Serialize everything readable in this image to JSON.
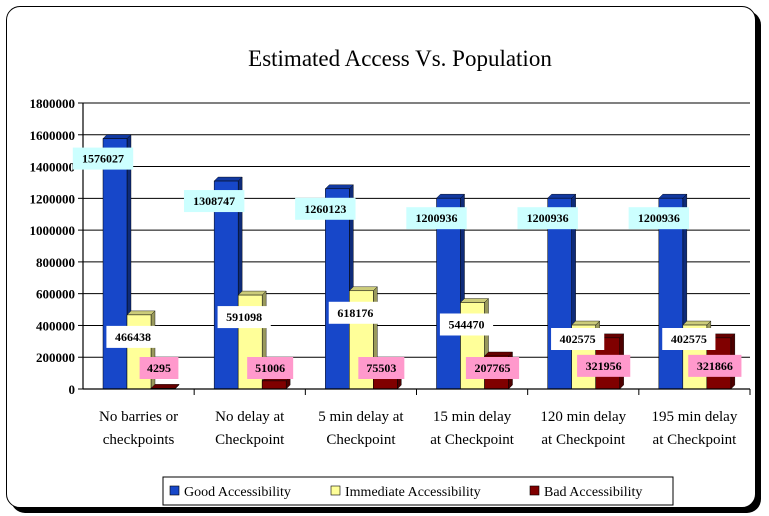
{
  "chart_data": {
    "type": "bar",
    "title": "Estimated Access Vs. Population",
    "categories": [
      [
        "No barries or",
        "checkpoints"
      ],
      [
        "No delay at",
        "Checkpoint"
      ],
      [
        "5 min delay at",
        "Checkpoint"
      ],
      [
        "15 min delay",
        "at Checkpoint"
      ],
      [
        "120 min delay",
        "at Checkpoint"
      ],
      [
        "195 min delay",
        "at Checkpoint"
      ]
    ],
    "series": [
      {
        "name": "Good Accessibility",
        "color": "#1747c9",
        "label_bg": "#ccffff",
        "values": [
          1576027,
          1308747,
          1260123,
          1200936,
          1200936,
          1200936
        ]
      },
      {
        "name": "Immediate Accessibility",
        "color": "#ffff99",
        "label_bg": "#ffffff",
        "values": [
          466438,
          591098,
          618176,
          544470,
          402575,
          402575
        ]
      },
      {
        "name": "Bad Accessibility",
        "color": "#800000",
        "label_bg": "#ff99cc",
        "values": [
          4295,
          51006,
          75503,
          207765,
          321956,
          321866
        ]
      }
    ],
    "ylim": [
      0,
      1800000
    ],
    "yticks": [
      0,
      200000,
      400000,
      600000,
      800000,
      1000000,
      1200000,
      1400000,
      1600000,
      1800000
    ],
    "grid": true,
    "legend": "bottom"
  }
}
